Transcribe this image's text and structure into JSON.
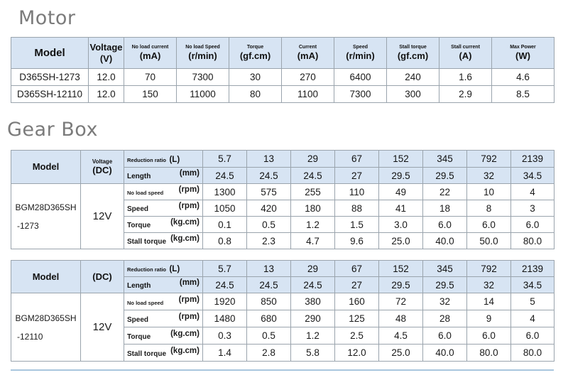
{
  "motor": {
    "title": "Motor",
    "headers": [
      {
        "label": "Model",
        "unit": ""
      },
      {
        "label": "Voltage",
        "unit": "(V)"
      },
      {
        "label": "No load current",
        "unit": "(mA)"
      },
      {
        "label": "No load Speed",
        "unit": "(r/min)"
      },
      {
        "label": "Torque",
        "unit": "(gf.cm)"
      },
      {
        "label": "Current",
        "unit": "(mA)"
      },
      {
        "label": "Speed",
        "unit": "(r/min)"
      },
      {
        "label": "Stall torque",
        "unit": "(gf.cm)"
      },
      {
        "label": "Stall current",
        "unit": "(A)"
      },
      {
        "label": "Max Power",
        "unit": "(W)"
      }
    ],
    "rows": [
      [
        "D365SH-1273",
        "12.0",
        "70",
        "7300",
        "30",
        "270",
        "6400",
        "240",
        "1.6",
        "4.6"
      ],
      [
        "D365SH-12110",
        "12.0",
        "150",
        "11000",
        "80",
        "1100",
        "7300",
        "300",
        "2.9",
        "8.5"
      ]
    ]
  },
  "gearbox": {
    "title": "Gear Box",
    "tables": [
      {
        "model_header": "Model",
        "voltage_header": "Voltage",
        "voltage_unit": "(DC)",
        "ratio_label": "Reduction ratio",
        "ratio_unit": "(L)",
        "length_label": "Length",
        "length_unit": "(mm)",
        "ratios": [
          "5.7",
          "13",
          "29",
          "67",
          "152",
          "345",
          "792",
          "2139"
        ],
        "lengths": [
          "24.5",
          "24.5",
          "24.5",
          "27",
          "29.5",
          "29.5",
          "32",
          "34.5"
        ],
        "model_line1": "BGM28D365SH",
        "model_line2": "-1273",
        "voltage": "12V",
        "rows": [
          {
            "label": "No load speed",
            "unit": "(rpm)",
            "values": [
              "1300",
              "575",
              "255",
              "110",
              "49",
              "22",
              "10",
              "4"
            ]
          },
          {
            "label": "Speed",
            "unit": "(rpm)",
            "values": [
              "1050",
              "420",
              "180",
              "88",
              "41",
              "18",
              "8",
              "3"
            ]
          },
          {
            "label": "Torque",
            "unit": "(kg.cm)",
            "values": [
              "0.1",
              "0.5",
              "1.2",
              "1.5",
              "3.0",
              "6.0",
              "6.0",
              "6.0"
            ]
          },
          {
            "label": "Stall torque",
            "unit": "(kg.cm)",
            "values": [
              "0.8",
              "2.3",
              "4.7",
              "9.6",
              "25.0",
              "40.0",
              "50.0",
              "80.0"
            ]
          }
        ]
      },
      {
        "model_header": "Model",
        "voltage_header": "",
        "voltage_unit": "(DC)",
        "ratio_label": "Reduction ratio",
        "ratio_unit": "(L)",
        "length_label": "Length",
        "length_unit": "(mm)",
        "ratios": [
          "5.7",
          "13",
          "29",
          "67",
          "152",
          "345",
          "792",
          "2139"
        ],
        "lengths": [
          "24.5",
          "24.5",
          "24.5",
          "27",
          "29.5",
          "29.5",
          "32",
          "34.5"
        ],
        "model_line1": "BGM28D365SH",
        "model_line2": "-12110",
        "voltage": "12V",
        "rows": [
          {
            "label": "No load speed",
            "unit": "(rpm)",
            "values": [
              "1920",
              "850",
              "380",
              "160",
              "72",
              "32",
              "14",
              "5"
            ]
          },
          {
            "label": "Speed",
            "unit": "(rpm)",
            "values": [
              "1480",
              "680",
              "290",
              "125",
              "48",
              "28",
              "9",
              "4"
            ]
          },
          {
            "label": "Torque",
            "unit": "(kg.cm)",
            "values": [
              "0.3",
              "0.5",
              "1.2",
              "2.5",
              "4.5",
              "6.0",
              "6.0",
              "6.0"
            ]
          },
          {
            "label": "Stall torque",
            "unit": "(kg.cm)",
            "values": [
              "1.4",
              "2.8",
              "5.8",
              "12.0",
              "25.0",
              "40.0",
              "80.0",
              "80.0"
            ]
          }
        ]
      }
    ]
  }
}
